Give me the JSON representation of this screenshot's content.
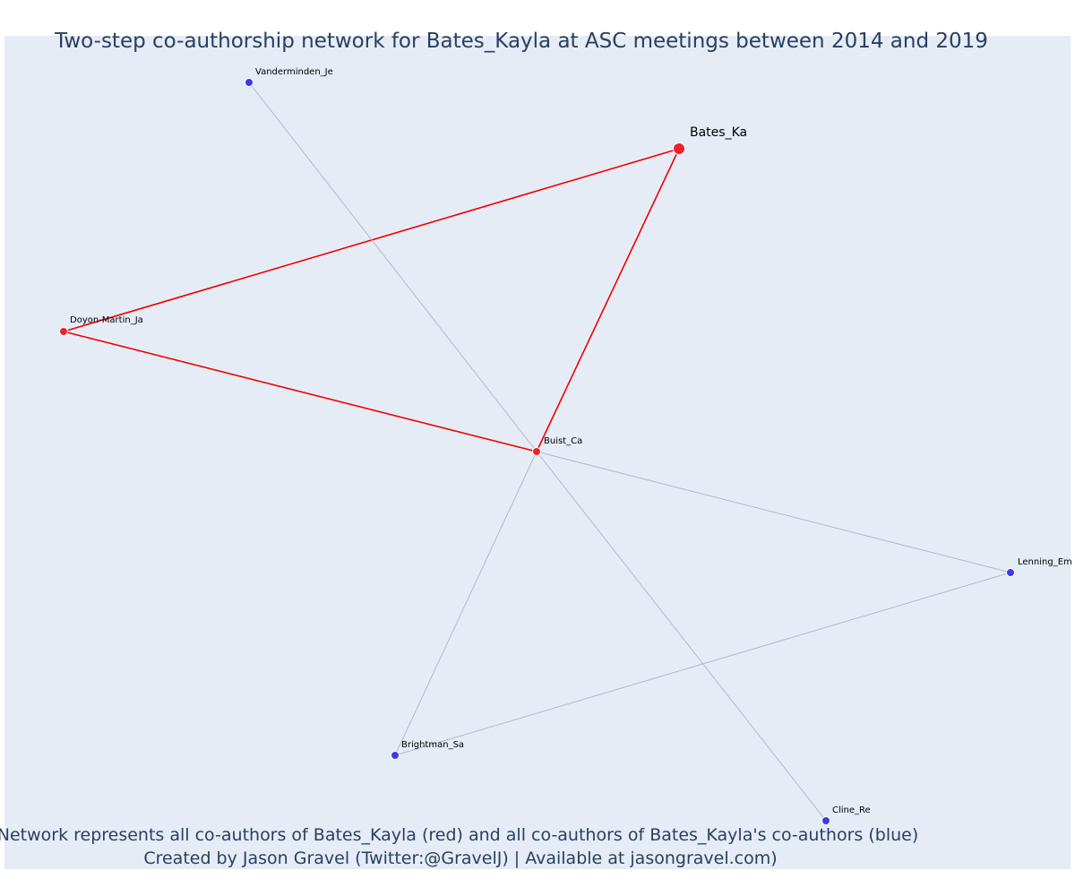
{
  "title": "Two-step co-authorship network for Bates_Kayla at ASC meetings between 2014 and 2019",
  "footer": {
    "line1": "Network represents all co-authors of Bates_Kayla (red) and all co-authors of Bates_Kayla's co-authors (blue)",
    "line2": "Created by Jason Gravel (Twitter:@GravelJ) | Available at jasongravel.com)"
  },
  "colors": {
    "background": "#e5ecf6",
    "first_degree": "#f0202a",
    "second_degree": "#3a3ae8",
    "edge_first": "#f00000",
    "edge_second": "#b4b8c8",
    "text": "#2a3f5f"
  },
  "nodes": [
    {
      "id": "bates",
      "label": "Bates_Ka",
      "group": "focal"
    },
    {
      "id": "doyon",
      "label": "Doyon-Martin_Ja",
      "group": "first"
    },
    {
      "id": "buist",
      "label": "Buist_Ca",
      "group": "first"
    },
    {
      "id": "vander",
      "label": "Vanderminden_Je",
      "group": "second"
    },
    {
      "id": "lenning",
      "label": "Lenning_Em",
      "group": "second"
    },
    {
      "id": "brightman",
      "label": "Brightman_Sa",
      "group": "second"
    },
    {
      "id": "cline",
      "label": "Cline_Re",
      "group": "second"
    }
  ],
  "edges": [
    {
      "source": "bates",
      "target": "doyon",
      "type": "first"
    },
    {
      "source": "bates",
      "target": "buist",
      "type": "first"
    },
    {
      "source": "doyon",
      "target": "buist",
      "type": "first"
    },
    {
      "source": "vander",
      "target": "buist",
      "type": "second"
    },
    {
      "source": "buist",
      "target": "lenning",
      "type": "second"
    },
    {
      "source": "buist",
      "target": "brightman",
      "type": "second"
    },
    {
      "source": "buist",
      "target": "cline",
      "type": "second"
    },
    {
      "source": "brightman",
      "target": "lenning",
      "type": "second"
    }
  ]
}
